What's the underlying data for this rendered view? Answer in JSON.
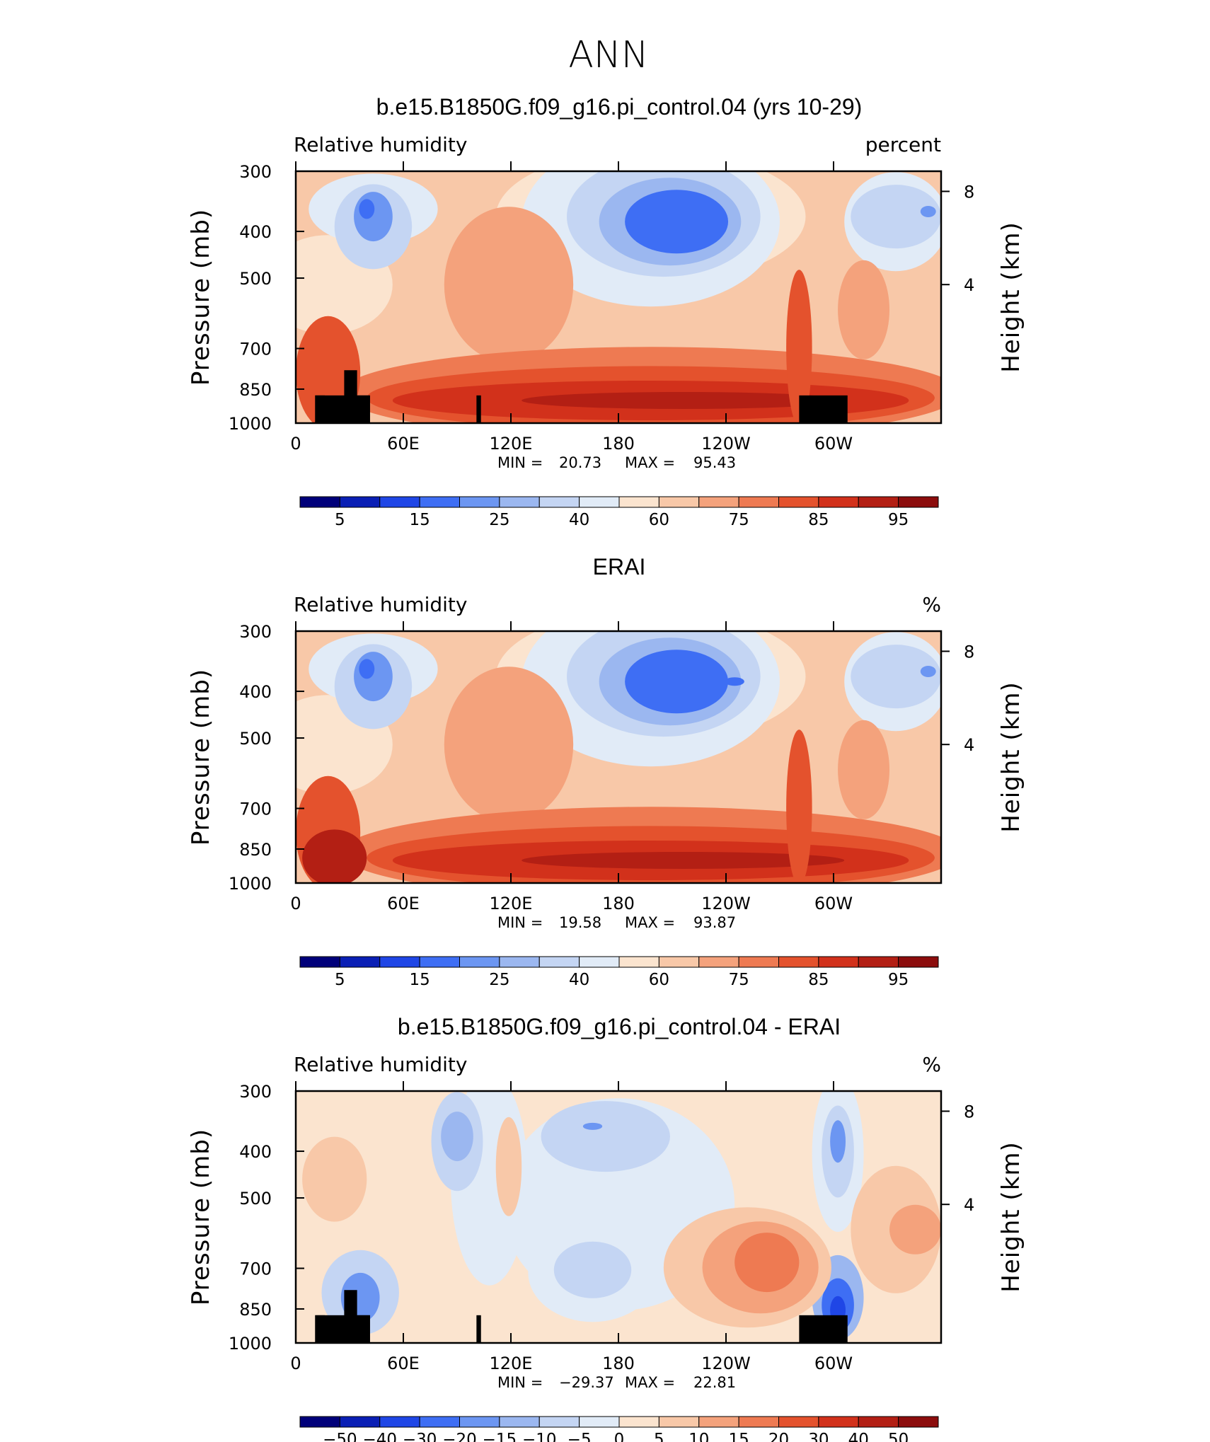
{
  "figure_title": "ANN",
  "chart_data": [
    {
      "type": "heatmap",
      "title": "b.e15.B1850G.f09_g16.pi_control.04 (yrs 10-29)",
      "variable": "Relative humidity",
      "units": "percent",
      "ylabel_left": "Pressure (mb)",
      "ylabel_right": "Height (km)",
      "yticks_left": [
        "300",
        "400",
        "500",
        "700",
        "850",
        "1000"
      ],
      "yticks_right": [
        "8",
        "4"
      ],
      "xticks": [
        "0",
        "60E",
        "120E",
        "180",
        "120W",
        "60W"
      ],
      "min_text": "MIN =",
      "min_value": "20.73",
      "max_text": "MAX =",
      "max_value": "95.43",
      "colorbar_labels": [
        "5",
        "15",
        "25",
        "40",
        "60",
        "75",
        "85",
        "95"
      ],
      "colorbar_colors": [
        "#00007a",
        "#0a1fb5",
        "#1f46e6",
        "#3e6ef4",
        "#6c96f2",
        "#9bb7f0",
        "#c4d5f3",
        "#e1ebf7",
        "#fbe4cf",
        "#f8c8a8",
        "#f4a27c",
        "#ee7a52",
        "#e4522d",
        "#d2311b",
        "#b31f14",
        "#8c0d0d"
      ],
      "topography": true
    },
    {
      "type": "heatmap",
      "title": "ERAI",
      "variable": "Relative humidity",
      "units": "%",
      "ylabel_left": "Pressure (mb)",
      "ylabel_right": "Height (km)",
      "yticks_left": [
        "300",
        "400",
        "500",
        "700",
        "850",
        "1000"
      ],
      "yticks_right": [
        "8",
        "4"
      ],
      "xticks": [
        "0",
        "60E",
        "120E",
        "180",
        "120W",
        "60W"
      ],
      "min_text": "MIN =",
      "min_value": "19.58",
      "max_text": "MAX =",
      "max_value": "93.87",
      "colorbar_labels": [
        "5",
        "15",
        "25",
        "40",
        "60",
        "75",
        "85",
        "95"
      ],
      "colorbar_colors": [
        "#00007a",
        "#0a1fb5",
        "#1f46e6",
        "#3e6ef4",
        "#6c96f2",
        "#9bb7f0",
        "#c4d5f3",
        "#e1ebf7",
        "#fbe4cf",
        "#f8c8a8",
        "#f4a27c",
        "#ee7a52",
        "#e4522d",
        "#d2311b",
        "#b31f14",
        "#8c0d0d"
      ],
      "topography": false
    },
    {
      "type": "heatmap",
      "title": "b.e15.B1850G.f09_g16.pi_control.04 - ERAI",
      "variable": "Relative humidity",
      "units": "%",
      "ylabel_left": "Pressure (mb)",
      "ylabel_right": "Height (km)",
      "yticks_left": [
        "300",
        "400",
        "500",
        "700",
        "850",
        "1000"
      ],
      "yticks_right": [
        "8",
        "4"
      ],
      "xticks": [
        "0",
        "60E",
        "120E",
        "180",
        "120W",
        "60W"
      ],
      "min_text": "MIN =",
      "min_value": "−29.37",
      "max_text": "MAX =",
      "max_value": "22.81",
      "colorbar_labels": [
        "−50",
        "−40",
        "−30",
        "−20",
        "−15",
        "−10",
        "−5",
        "0",
        "5",
        "10",
        "15",
        "20",
        "30",
        "40",
        "50"
      ],
      "colorbar_colors": [
        "#00007a",
        "#0a1fb5",
        "#1f46e6",
        "#3e6ef4",
        "#6c96f2",
        "#9bb7f0",
        "#c4d5f3",
        "#e1ebf7",
        "#fbe4cf",
        "#f8c8a8",
        "#f4a27c",
        "#ee7a52",
        "#e4522d",
        "#d2311b",
        "#b31f14",
        "#8c0d0d"
      ],
      "topography": true
    }
  ]
}
